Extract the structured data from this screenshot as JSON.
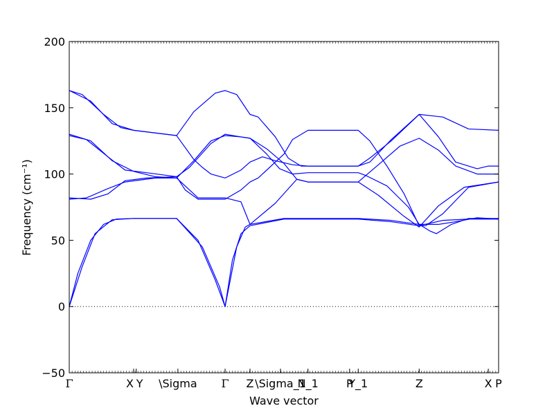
{
  "chart_data": {
    "type": "line",
    "xlabel": "Wave vector",
    "ylabel": "Frequency (cm⁻¹)",
    "ylim": [
      -50,
      200
    ],
    "yticks": [
      -50,
      0,
      50,
      100,
      150,
      200
    ],
    "xlim": [
      0,
      1
    ],
    "zero_line": true,
    "line_color": "#0000ff",
    "kpoints": [
      {
        "label": "Γ",
        "x": 0.0
      },
      {
        "label": "X",
        "x": 0.15
      },
      {
        "label": "Y",
        "x": 0.156
      },
      {
        "label": "\\Sigma",
        "x": 0.253
      },
      {
        "label": "Γ",
        "x": 0.363
      },
      {
        "label": "Z",
        "x": 0.421
      },
      {
        "label": "\\Sigma_1",
        "x": 0.492
      },
      {
        "label": "N_1",
        "x": 0.556
      },
      {
        "label": "P",
        "x": 0.653
      },
      {
        "label": "Y_1",
        "x": 0.673
      },
      {
        "label": "Z",
        "x": 0.815
      },
      {
        "label": "X",
        "x": 0.976
      },
      {
        "label": "P",
        "x": 1.0
      }
    ],
    "series": [
      {
        "points": [
          [
            0,
            0
          ],
          [
            0.02,
            25
          ],
          [
            0.05,
            50
          ],
          [
            0.08,
            62
          ],
          [
            0.11,
            66
          ],
          [
            0.15,
            66.5
          ],
          [
            0.25,
            66.5
          ],
          [
            0.3,
            50
          ],
          [
            0.34,
            20
          ],
          [
            0.363,
            0
          ],
          [
            0.38,
            35
          ],
          [
            0.4,
            55
          ],
          [
            0.421,
            61
          ],
          [
            0.5,
            66
          ],
          [
            0.556,
            66
          ],
          [
            0.673,
            66
          ],
          [
            0.75,
            64
          ],
          [
            0.815,
            61
          ],
          [
            0.87,
            65
          ],
          [
            0.93,
            66
          ],
          [
            1.0,
            66
          ]
        ]
      },
      {
        "points": [
          [
            0,
            0
          ],
          [
            0.03,
            30
          ],
          [
            0.06,
            55
          ],
          [
            0.1,
            65.5
          ],
          [
            0.15,
            66.5
          ],
          [
            0.25,
            66.5
          ],
          [
            0.31,
            45
          ],
          [
            0.35,
            15
          ],
          [
            0.363,
            0
          ],
          [
            0.39,
            45
          ],
          [
            0.41,
            60
          ],
          [
            0.421,
            62
          ],
          [
            0.5,
            66.5
          ],
          [
            0.556,
            66.5
          ],
          [
            0.673,
            66.5
          ],
          [
            0.75,
            65
          ],
          [
            0.815,
            62
          ],
          [
            0.84,
            57
          ],
          [
            0.855,
            55
          ],
          [
            0.89,
            62
          ],
          [
            0.93,
            66.5
          ],
          [
            1.0,
            66.5
          ]
        ]
      },
      {
        "points": [
          [
            0,
            81
          ],
          [
            0.04,
            82
          ],
          [
            0.09,
            89
          ],
          [
            0.13,
            94
          ],
          [
            0.2,
            97
          ],
          [
            0.25,
            97
          ],
          [
            0.28,
            88
          ],
          [
            0.3,
            82
          ],
          [
            0.363,
            82
          ],
          [
            0.4,
            79
          ],
          [
            0.421,
            62
          ],
          [
            0.48,
            78
          ],
          [
            0.53,
            96
          ],
          [
            0.556,
            94
          ],
          [
            0.6,
            94
          ],
          [
            0.673,
            94
          ],
          [
            0.72,
            84
          ],
          [
            0.78,
            68
          ],
          [
            0.815,
            60
          ],
          [
            0.86,
            76
          ],
          [
            0.92,
            90
          ],
          [
            1.0,
            94
          ]
        ]
      },
      {
        "points": [
          [
            0,
            82
          ],
          [
            0.05,
            81
          ],
          [
            0.09,
            85
          ],
          [
            0.13,
            95
          ],
          [
            0.18,
            97
          ],
          [
            0.25,
            98
          ],
          [
            0.27,
            88
          ],
          [
            0.3,
            81
          ],
          [
            0.363,
            81
          ],
          [
            0.4,
            88
          ],
          [
            0.421,
            94
          ],
          [
            0.44,
            97
          ],
          [
            0.5,
            115
          ],
          [
            0.52,
            126
          ],
          [
            0.556,
            133
          ],
          [
            0.673,
            133
          ],
          [
            0.7,
            125
          ],
          [
            0.74,
            106
          ],
          [
            0.78,
            85
          ],
          [
            0.815,
            61
          ],
          [
            0.83,
            61
          ],
          [
            0.87,
            70
          ],
          [
            0.93,
            90
          ],
          [
            1.0,
            94
          ]
        ]
      },
      {
        "points": [
          [
            0,
            130
          ],
          [
            0.05,
            125
          ],
          [
            0.1,
            110
          ],
          [
            0.15,
            102
          ],
          [
            0.2,
            98
          ],
          [
            0.25,
            97
          ],
          [
            0.29,
            110
          ],
          [
            0.33,
            125
          ],
          [
            0.363,
            129
          ],
          [
            0.4,
            128
          ],
          [
            0.421,
            127
          ],
          [
            0.46,
            119
          ],
          [
            0.5,
            108
          ],
          [
            0.53,
            96
          ],
          [
            0.556,
            94
          ],
          [
            0.673,
            94
          ],
          [
            0.72,
            107
          ],
          [
            0.77,
            121
          ],
          [
            0.815,
            127
          ],
          [
            0.86,
            118
          ],
          [
            0.9,
            106
          ],
          [
            0.95,
            100
          ],
          [
            1.0,
            100
          ]
        ]
      },
      {
        "points": [
          [
            0,
            129
          ],
          [
            0.04,
            126
          ],
          [
            0.09,
            113
          ],
          [
            0.13,
            103
          ],
          [
            0.18,
            101
          ],
          [
            0.25,
            98
          ],
          [
            0.28,
            105
          ],
          [
            0.33,
            123
          ],
          [
            0.363,
            130
          ],
          [
            0.4,
            128
          ],
          [
            0.421,
            127
          ],
          [
            0.46,
            115
          ],
          [
            0.49,
            104
          ],
          [
            0.52,
            100
          ],
          [
            0.556,
            101
          ],
          [
            0.673,
            101
          ],
          [
            0.69,
            99
          ],
          [
            0.74,
            91
          ],
          [
            0.79,
            75
          ],
          [
            0.815,
            62
          ],
          [
            0.86,
            62
          ],
          [
            0.9,
            64
          ],
          [
            0.95,
            67
          ],
          [
            1.0,
            66
          ]
        ]
      },
      {
        "points": [
          [
            0,
            163
          ],
          [
            0.03,
            160
          ],
          [
            0.08,
            145
          ],
          [
            0.12,
            135
          ],
          [
            0.15,
            133
          ],
          [
            0.2,
            131
          ],
          [
            0.25,
            129
          ],
          [
            0.29,
            147
          ],
          [
            0.34,
            161
          ],
          [
            0.363,
            163
          ],
          [
            0.39,
            160
          ],
          [
            0.421,
            145
          ],
          [
            0.44,
            143
          ],
          [
            0.48,
            128
          ],
          [
            0.51,
            112
          ],
          [
            0.54,
            106
          ],
          [
            0.556,
            106
          ],
          [
            0.673,
            106
          ],
          [
            0.7,
            109
          ],
          [
            0.75,
            126
          ],
          [
            0.815,
            145
          ],
          [
            0.87,
            143
          ],
          [
            0.93,
            134
          ],
          [
            1.0,
            133
          ]
        ]
      },
      {
        "points": [
          [
            0,
            163
          ],
          [
            0.05,
            155
          ],
          [
            0.1,
            138
          ],
          [
            0.15,
            133
          ],
          [
            0.25,
            129
          ],
          [
            0.29,
            111
          ],
          [
            0.31,
            105
          ],
          [
            0.33,
            100
          ],
          [
            0.363,
            97
          ],
          [
            0.4,
            103
          ],
          [
            0.421,
            109
          ],
          [
            0.45,
            113
          ],
          [
            0.48,
            110
          ],
          [
            0.52,
            107
          ],
          [
            0.556,
            106
          ],
          [
            0.673,
            106
          ],
          [
            0.7,
            112
          ],
          [
            0.75,
            125
          ],
          [
            0.815,
            145
          ],
          [
            0.86,
            128
          ],
          [
            0.9,
            109
          ],
          [
            0.95,
            104
          ],
          [
            0.976,
            106
          ],
          [
            1.0,
            106
          ]
        ]
      }
    ]
  }
}
